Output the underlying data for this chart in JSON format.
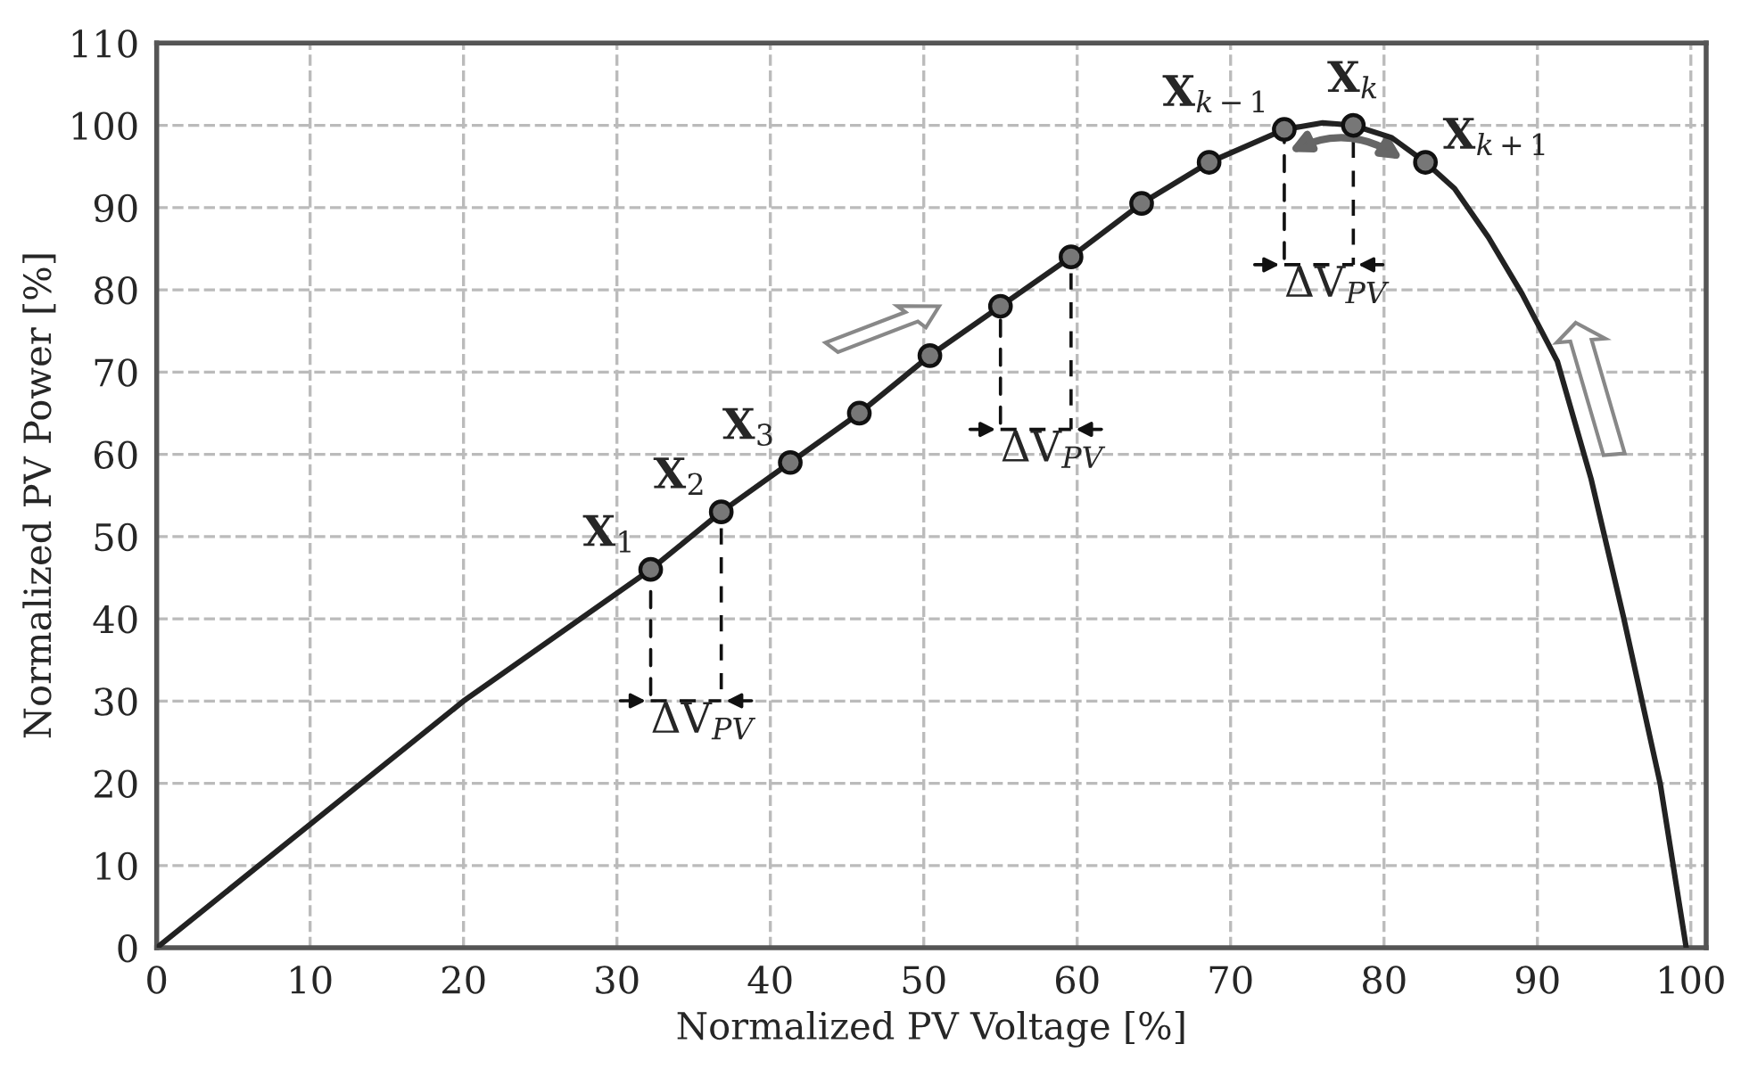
{
  "chart_data": {
    "type": "line",
    "xlabel": "Normalized PV Voltage [%]",
    "ylabel": "Normalized PV Power [%]",
    "series": [
      {
        "color": "#222222",
        "marker": "none",
        "x": [
          0,
          10,
          20,
          32.2,
          36.8,
          41.3,
          45.8,
          50.4,
          55,
          59.6,
          64.2,
          68.6,
          73.5,
          76,
          78,
          80.5,
          82.7,
          84.6,
          86.8,
          89,
          91.3,
          93.5,
          95.6,
          98,
          99.7
        ],
        "values": [
          0,
          15,
          30,
          46,
          53,
          59,
          65,
          72,
          78,
          84,
          90.5,
          95.5,
          99.5,
          100.3,
          100,
          98.5,
          95.5,
          92.3,
          86.4,
          79.5,
          71.3,
          57,
          40.3,
          20,
          0
        ]
      },
      {
        "type": "scatter",
        "color": "#777777",
        "marker": "circle",
        "x": [
          32.2,
          36.8,
          41.3,
          45.8,
          50.4,
          55,
          59.6,
          64.2,
          68.6,
          73.5,
          78,
          82.7
        ],
        "values": [
          46,
          53,
          59,
          65,
          72,
          78,
          84,
          90.5,
          95.5,
          99.5,
          100,
          95.5
        ]
      }
    ],
    "annotations": [
      {
        "text": "X$_{1}$",
        "x": 32.2,
        "y": 46
      },
      {
        "text": "X$_{2}$",
        "x": 36.8,
        "y": 53
      },
      {
        "text": "X$_{3}$",
        "x": 41.3,
        "y": 59
      },
      {
        "text": "X$_{k−1}$",
        "x": 73.5,
        "y": 99.5
      },
      {
        "text": "X$_{k}$",
        "x": 78,
        "y": 100
      },
      {
        "text": "X$_{k+1}$",
        "x": 82.7,
        "y": 95.5
      },
      {
        "text": "ΔV$_{PV}$",
        "x": 32.2,
        "y": 46
      },
      {
        "text": "ΔV$_{PV}$",
        "x": 55,
        "y": 78
      },
      {
        "text": "ΔV$_{PV}$",
        "x": 73.5,
        "y": 99.5
      }
    ],
    "xlim": [
      0,
      101
    ],
    "ylim": [
      0,
      110
    ],
    "xticks": [
      0,
      10,
      20,
      30,
      40,
      50,
      60,
      70,
      80,
      90,
      100
    ],
    "yticks": [
      0,
      10,
      20,
      30,
      40,
      50,
      60,
      70,
      80,
      90,
      100,
      110
    ],
    "grid": true,
    "legend": false
  }
}
